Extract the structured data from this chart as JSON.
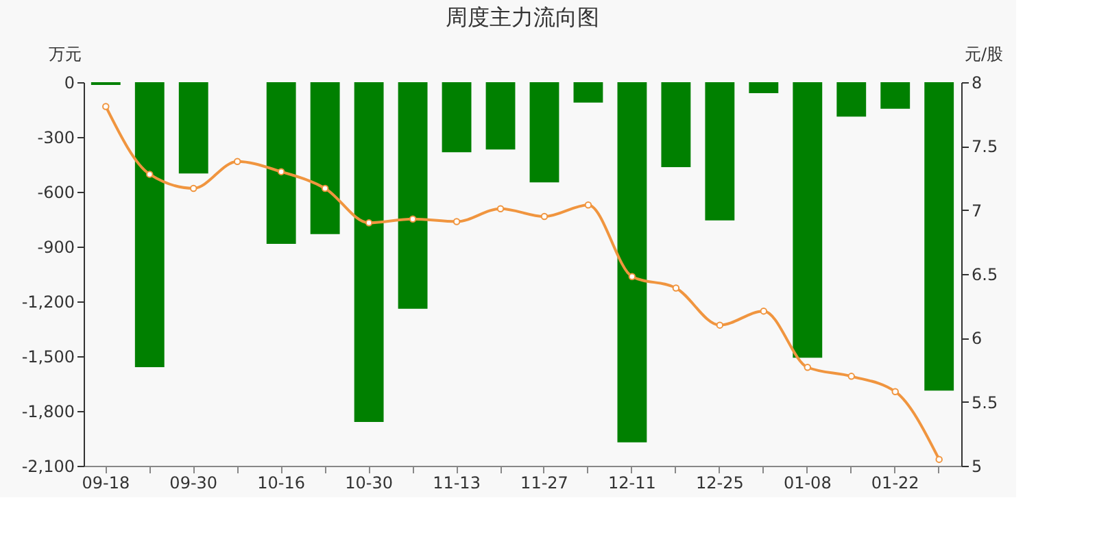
{
  "chart_data": {
    "type": "bar",
    "title": "周度主力流向图",
    "ylabel": "万元",
    "y2label": "元/股",
    "categories": [
      "09-18",
      null,
      "09-30",
      null,
      "10-16",
      null,
      "10-30",
      null,
      "11-13",
      null,
      "11-27",
      null,
      "12-11",
      null,
      "12-25",
      null,
      "01-08",
      null,
      "01-22",
      null
    ],
    "series": [
      {
        "color": "#008000",
        "values": [
          -15,
          -1560,
          -500,
          0,
          -885,
          -832,
          -1860,
          -1240,
          -383,
          -368,
          -548,
          -112,
          -1972,
          -465,
          -757,
          -60,
          -1508,
          -188,
          -145,
          -1688
        ]
      },
      {
        "type": "line",
        "axis": "y2",
        "color": "#f0953f",
        "marker": "circle",
        "line_style": "solid",
        "values": [
          7.81,
          7.28,
          7.17,
          7.38,
          7.3,
          7.17,
          6.9,
          6.93,
          6.91,
          7.01,
          6.95,
          7.04,
          6.48,
          6.39,
          6.1,
          6.21,
          5.77,
          5.7,
          5.58,
          5.05
        ]
      }
    ],
    "ylim": [
      -2100,
      0
    ],
    "yticks": [
      {
        "value": -2100,
        "label": "-2,100"
      },
      {
        "value": -1800,
        "label": "-1,800"
      },
      {
        "value": -1500,
        "label": "-1,500"
      },
      {
        "value": -1200,
        "label": "-1,200"
      },
      {
        "value": -900,
        "label": "-900"
      },
      {
        "value": -600,
        "label": "-600"
      },
      {
        "value": -300,
        "label": "-300"
      },
      0
    ],
    "y2lim": [
      5,
      8
    ],
    "y2ticks": [
      5,
      5.5,
      6,
      6.5,
      7,
      7.5,
      8
    ],
    "grid": false
  }
}
